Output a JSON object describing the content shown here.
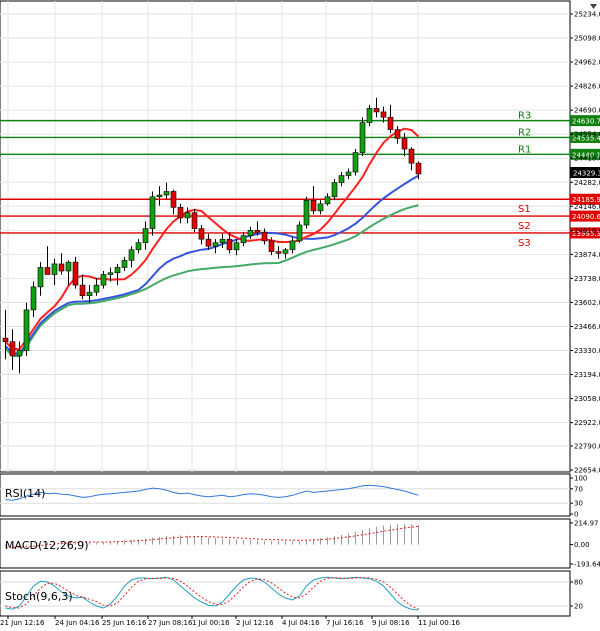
{
  "chart_data": [
    {
      "type": "candlestick",
      "y_ticks": [
        "25234.0",
        "25098.0",
        "24962.0",
        "24826.0",
        "24690.0",
        "24554.0",
        "24418.0",
        "24282.0",
        "24146.0",
        "24010.0",
        "23874.0",
        "23738.0",
        "23602.0",
        "23466.0",
        "23330.0",
        "23194.0",
        "23058.0",
        "22922.0",
        "22790.0",
        "22654.0"
      ],
      "ylim": [
        22654.0,
        25290.0
      ],
      "x_ticks": [
        "21 Jun 12:16",
        "24 Jun 04:16",
        "25 Jun 16:16",
        "27 Jun 08:16",
        "1 Jul 00:16",
        "2 Jul 12:16",
        "4 Jul 04:16",
        "7 Jul 16:16",
        "9 Jul 08:16",
        "11 Jul 00:16"
      ],
      "last_price": "24329.3",
      "colors": {
        "up": "#10a010",
        "down": "#e00000",
        "ma_fast": "#ff2020",
        "ma_mid": "#3355dd",
        "ma_slow": "#44aa66",
        "resistance": "#108010",
        "support": "#e00000"
      },
      "levels": [
        {
          "name": "R3",
          "value": 24630.7,
          "label": "24630.7",
          "kind": "resistance"
        },
        {
          "name": "R2",
          "value": 24535.4,
          "label": "24535.4",
          "kind": "resistance"
        },
        {
          "name": "R1",
          "value": 24440.1,
          "label": "24440.1",
          "kind": "resistance"
        },
        {
          "name": "S1",
          "value": 24185.9,
          "label": "24185.9",
          "kind": "support"
        },
        {
          "name": "S2",
          "value": 24090.6,
          "label": "24090.6",
          "kind": "support"
        },
        {
          "name": "S3",
          "value": 23995.3,
          "label": "23995.3",
          "kind": "support"
        }
      ],
      "candles": [
        [
          23400,
          23560,
          23280,
          23380
        ],
        [
          23380,
          23450,
          23220,
          23300
        ],
        [
          23300,
          23380,
          23200,
          23330
        ],
        [
          23330,
          23600,
          23300,
          23560
        ],
        [
          23560,
          23720,
          23520,
          23690
        ],
        [
          23690,
          23830,
          23640,
          23800
        ],
        [
          23800,
          23920,
          23760,
          23760
        ],
        [
          23760,
          23850,
          23700,
          23820
        ],
        [
          23820,
          23880,
          23760,
          23780
        ],
        [
          23780,
          23840,
          23700,
          23830
        ],
        [
          23830,
          23860,
          23680,
          23700
        ],
        [
          23700,
          23760,
          23620,
          23640
        ],
        [
          23640,
          23700,
          23600,
          23660
        ],
        [
          23660,
          23740,
          23640,
          23700
        ],
        [
          23700,
          23780,
          23680,
          23760
        ],
        [
          23760,
          23800,
          23720,
          23770
        ],
        [
          23770,
          23820,
          23700,
          23800
        ],
        [
          23800,
          23860,
          23780,
          23840
        ],
        [
          23840,
          23920,
          23800,
          23900
        ],
        [
          23900,
          23960,
          23880,
          23940
        ],
        [
          23940,
          24060,
          23900,
          24020
        ],
        [
          24020,
          24230,
          23980,
          24200
        ],
        [
          24200,
          24260,
          24150,
          24210
        ],
        [
          24210,
          24280,
          24190,
          24230
        ],
        [
          24230,
          24240,
          24100,
          24140
        ],
        [
          24140,
          24160,
          24050,
          24080
        ],
        [
          24080,
          24140,
          24050,
          24110
        ],
        [
          24110,
          24130,
          24000,
          24020
        ],
        [
          24020,
          24040,
          23930,
          23960
        ],
        [
          23960,
          23990,
          23900,
          23920
        ],
        [
          23920,
          23960,
          23880,
          23940
        ],
        [
          23940,
          23990,
          23910,
          23960
        ],
        [
          23960,
          24000,
          23880,
          23900
        ],
        [
          23900,
          23960,
          23870,
          23940
        ],
        [
          23940,
          24000,
          23920,
          23980
        ],
        [
          23980,
          24030,
          23960,
          24010
        ],
        [
          24010,
          24060,
          23980,
          24000
        ],
        [
          24000,
          24020,
          23930,
          23950
        ],
        [
          23950,
          23970,
          23870,
          23890
        ],
        [
          23890,
          23920,
          23850,
          23880
        ],
        [
          23880,
          23910,
          23850,
          23900
        ],
        [
          23900,
          23970,
          23880,
          23950
        ],
        [
          23950,
          24060,
          23940,
          24040
        ],
        [
          24040,
          24200,
          24020,
          24180
        ],
        [
          24180,
          24260,
          24100,
          24120
        ],
        [
          24120,
          24180,
          24100,
          24160
        ],
        [
          24160,
          24220,
          24150,
          24200
        ],
        [
          24200,
          24300,
          24180,
          24280
        ],
        [
          24280,
          24340,
          24260,
          24320
        ],
        [
          24320,
          24360,
          24300,
          24340
        ],
        [
          24340,
          24470,
          24320,
          24450
        ],
        [
          24450,
          24650,
          24430,
          24620
        ],
        [
          24620,
          24720,
          24600,
          24700
        ],
        [
          24700,
          24760,
          24650,
          24680
        ],
        [
          24680,
          24710,
          24620,
          24650
        ],
        [
          24650,
          24720,
          24560,
          24580
        ],
        [
          24580,
          24600,
          24500,
          24530
        ],
        [
          24530,
          24560,
          24430,
          24470
        ],
        [
          24470,
          24480,
          24350,
          24390
        ],
        [
          24390,
          24400,
          24300,
          24329
        ]
      ]
    },
    {
      "type": "line",
      "title": "RSI(14)",
      "y_ticks": [
        "100",
        "70",
        "30",
        "0"
      ],
      "ylim": [
        0,
        100
      ],
      "series": [
        {
          "values": [
            40,
            38,
            42,
            50,
            55,
            60,
            56,
            58,
            55,
            54,
            50,
            46,
            48,
            52,
            55,
            56,
            58,
            60,
            62,
            64,
            68,
            72,
            70,
            66,
            60,
            56,
            58,
            54,
            50,
            48,
            50,
            52,
            48,
            50,
            54,
            56,
            55,
            52,
            48,
            46,
            48,
            52,
            58,
            64,
            60,
            62,
            64,
            66,
            68,
            70,
            74,
            78,
            80,
            78,
            76,
            72,
            68,
            64,
            58,
            52
          ]
        }
      ]
    },
    {
      "type": "bar",
      "title": "MACD(12,26,9)",
      "y_ticks": [
        "214.97",
        "0.00",
        "-193.64"
      ],
      "ylim": [
        -193.64,
        214.97
      ],
      "values": [
        -20,
        -25,
        -20,
        -10,
        0,
        10,
        20,
        25,
        30,
        32,
        30,
        26,
        24,
        22,
        26,
        30,
        34,
        40,
        46,
        52,
        60,
        70,
        78,
        84,
        88,
        90,
        88,
        84,
        78,
        72,
        66,
        60,
        54,
        50,
        46,
        44,
        42,
        40,
        38,
        36,
        34,
        34,
        38,
        46,
        56,
        64,
        74,
        84,
        96,
        110,
        126,
        146,
        164,
        178,
        190,
        198,
        204,
        206,
        202,
        196
      ],
      "series": [
        {
          "values": [
            -30,
            -28,
            -26,
            -22,
            -16,
            -10,
            -2,
            6,
            12,
            18,
            22,
            25,
            26,
            26,
            26,
            27,
            29,
            32,
            35,
            39,
            44,
            50,
            56,
            62,
            68,
            72,
            76,
            78,
            79,
            78,
            76,
            73,
            70,
            66,
            63,
            59,
            56,
            53,
            50,
            48,
            45,
            44,
            43,
            44,
            46,
            49,
            54,
            60,
            67,
            76,
            86,
            97,
            109,
            121,
            133,
            144,
            155,
            165,
            174,
            181
          ]
        }
      ]
    },
    {
      "type": "line",
      "title": "Stoch(9,6,3)",
      "y_ticks": [
        "80",
        "20"
      ],
      "ylim": [
        0,
        100
      ],
      "series": [
        {
          "values": [
            15,
            12,
            20,
            45,
            70,
            82,
            80,
            70,
            55,
            45,
            40,
            42,
            30,
            20,
            15,
            25,
            45,
            70,
            85,
            90,
            90,
            88,
            90,
            92,
            85,
            70,
            55,
            40,
            30,
            22,
            20,
            30,
            50,
            70,
            85,
            90,
            88,
            80,
            65,
            50,
            40,
            35,
            45,
            70,
            85,
            90,
            92,
            90,
            88,
            90,
            92,
            90,
            88,
            82,
            70,
            50,
            30,
            18,
            12,
            10
          ]
        },
        {
          "values": [
            20,
            16,
            15,
            25,
            45,
            65,
            77,
            77,
            68,
            57,
            47,
            42,
            37,
            31,
            22,
            20,
            28,
            47,
            67,
            82,
            88,
            89,
            89,
            90,
            89,
            82,
            70,
            55,
            42,
            31,
            24,
            24,
            33,
            50,
            68,
            82,
            88,
            86,
            78,
            65,
            52,
            42,
            40,
            50,
            67,
            82,
            89,
            91,
            90,
            89,
            90,
            91,
            90,
            87,
            80,
            67,
            50,
            33,
            20,
            13
          ]
        }
      ]
    }
  ]
}
